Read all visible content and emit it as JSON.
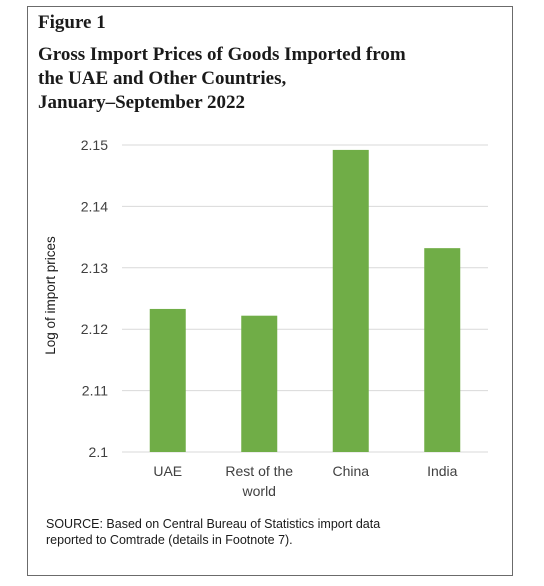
{
  "figure": {
    "label": "Figure 1",
    "title_lines": [
      "Gross Import Prices of Goods Imported from",
      "the UAE and Other Countries,",
      "January–September 2022"
    ]
  },
  "chart_data": {
    "type": "bar",
    "categories": [
      "UAE",
      "Rest of the world",
      "China",
      "India"
    ],
    "category_label_lines": [
      [
        "UAE"
      ],
      [
        "Rest of the",
        "world"
      ],
      [
        "China"
      ],
      [
        "India"
      ]
    ],
    "values": [
      2.1233,
      2.1222,
      2.1492,
      2.1332
    ],
    "ylabel": "Log of import prices",
    "xlabel": "",
    "ylim": [
      2.1,
      2.15
    ],
    "yticks": [
      "2.1",
      "2.11",
      "2.12",
      "2.13",
      "2.14",
      "2.15"
    ],
    "grid": true,
    "legend": "none",
    "bar_color": "#70ad47",
    "grid_color": "#d9d9d9"
  },
  "source": {
    "lines": [
      "SOURCE: Based on Central Bureau of Statistics import data",
      "reported to Comtrade (details in Footnote 7)."
    ]
  }
}
